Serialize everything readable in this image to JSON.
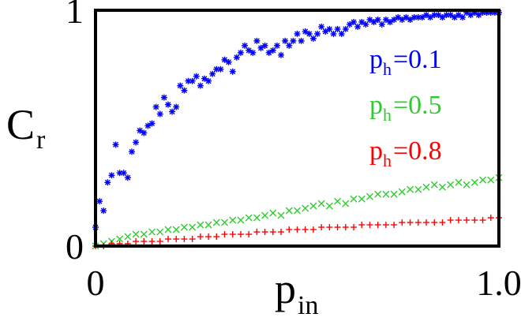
{
  "chart_data": {
    "type": "scatter",
    "xlabel": {
      "base": "p",
      "sub": "in"
    },
    "ylabel": {
      "base": "C",
      "sub": "r"
    },
    "xlim": [
      0,
      1.0
    ],
    "ylim": [
      0,
      1
    ],
    "x_ticks": [
      {
        "value": 0,
        "label": "0"
      },
      {
        "value": 1.0,
        "label": "1.0"
      }
    ],
    "y_ticks": [
      {
        "value": 0,
        "label": "0"
      },
      {
        "value": 1,
        "label": "1"
      }
    ],
    "legend_position": "right, inside plot",
    "grid": false,
    "series": [
      {
        "legend": {
          "base": "p",
          "sub": "h",
          "rest": "=0.1"
        },
        "color": "#0000ff",
        "marker": "asterisk",
        "points": [
          [
            0.0,
            0.08
          ],
          [
            0.01,
            0.19
          ],
          [
            0.02,
            0.15
          ],
          [
            0.03,
            0.27
          ],
          [
            0.04,
            0.3
          ],
          [
            0.05,
            0.43
          ],
          [
            0.06,
            0.31
          ],
          [
            0.07,
            0.31
          ],
          [
            0.08,
            0.29
          ],
          [
            0.09,
            0.4
          ],
          [
            0.1,
            0.44
          ],
          [
            0.11,
            0.49
          ],
          [
            0.12,
            0.48
          ],
          [
            0.13,
            0.51
          ],
          [
            0.14,
            0.52
          ],
          [
            0.15,
            0.59
          ],
          [
            0.16,
            0.56
          ],
          [
            0.17,
            0.63
          ],
          [
            0.18,
            0.6
          ],
          [
            0.19,
            0.57
          ],
          [
            0.2,
            0.59
          ],
          [
            0.21,
            0.68
          ],
          [
            0.22,
            0.66
          ],
          [
            0.23,
            0.7
          ],
          [
            0.24,
            0.7
          ],
          [
            0.25,
            0.72
          ],
          [
            0.26,
            0.68
          ],
          [
            0.27,
            0.71
          ],
          [
            0.28,
            0.7
          ],
          [
            0.29,
            0.73
          ],
          [
            0.3,
            0.75
          ],
          [
            0.31,
            0.75
          ],
          [
            0.32,
            0.79
          ],
          [
            0.33,
            0.78
          ],
          [
            0.34,
            0.74
          ],
          [
            0.35,
            0.8
          ],
          [
            0.36,
            0.82
          ],
          [
            0.37,
            0.85
          ],
          [
            0.38,
            0.83
          ],
          [
            0.39,
            0.82
          ],
          [
            0.4,
            0.87
          ],
          [
            0.41,
            0.84
          ],
          [
            0.42,
            0.85
          ],
          [
            0.43,
            0.82
          ],
          [
            0.44,
            0.83
          ],
          [
            0.45,
            0.85
          ],
          [
            0.46,
            0.81
          ],
          [
            0.47,
            0.87
          ],
          [
            0.48,
            0.85
          ],
          [
            0.49,
            0.87
          ],
          [
            0.5,
            0.9
          ],
          [
            0.51,
            0.87
          ],
          [
            0.52,
            0.91
          ],
          [
            0.53,
            0.9
          ],
          [
            0.54,
            0.88
          ],
          [
            0.55,
            0.9
          ],
          [
            0.56,
            0.93
          ],
          [
            0.57,
            0.91
          ],
          [
            0.58,
            0.92
          ],
          [
            0.59,
            0.9
          ],
          [
            0.6,
            0.92
          ],
          [
            0.61,
            0.9
          ],
          [
            0.62,
            0.92
          ],
          [
            0.63,
            0.94
          ],
          [
            0.64,
            0.95
          ],
          [
            0.65,
            0.93
          ],
          [
            0.66,
            0.95
          ],
          [
            0.67,
            0.94
          ],
          [
            0.68,
            0.96
          ],
          [
            0.69,
            0.95
          ],
          [
            0.7,
            0.96
          ],
          [
            0.71,
            0.94
          ],
          [
            0.72,
            0.96
          ],
          [
            0.73,
            0.95
          ],
          [
            0.74,
            0.96
          ],
          [
            0.75,
            0.97
          ],
          [
            0.76,
            0.96
          ],
          [
            0.77,
            0.97
          ],
          [
            0.78,
            0.96
          ],
          [
            0.79,
            0.97
          ],
          [
            0.8,
            0.97
          ],
          [
            0.81,
            0.97
          ],
          [
            0.82,
            0.98
          ],
          [
            0.83,
            0.97
          ],
          [
            0.84,
            0.98
          ],
          [
            0.85,
            0.98
          ],
          [
            0.86,
            0.97
          ],
          [
            0.87,
            0.98
          ],
          [
            0.88,
            0.98
          ],
          [
            0.89,
            0.97
          ],
          [
            0.9,
            0.98
          ],
          [
            0.91,
            0.97
          ],
          [
            0.92,
            0.99
          ],
          [
            0.93,
            0.98
          ],
          [
            0.94,
            0.99
          ],
          [
            0.95,
            0.98
          ],
          [
            0.96,
            0.99
          ],
          [
            0.97,
            0.99
          ],
          [
            0.98,
            0.99
          ],
          [
            0.99,
            0.99
          ],
          [
            1.0,
            0.99
          ]
        ]
      },
      {
        "legend": {
          "base": "p",
          "sub": "h",
          "rest": "=0.5"
        },
        "color": "#2ecc2e",
        "marker": "x",
        "points": [
          [
            0.0,
            0.0
          ],
          [
            0.02,
            0.01
          ],
          [
            0.04,
            0.02
          ],
          [
            0.06,
            0.03
          ],
          [
            0.08,
            0.04
          ],
          [
            0.1,
            0.05
          ],
          [
            0.12,
            0.05
          ],
          [
            0.14,
            0.06
          ],
          [
            0.16,
            0.06
          ],
          [
            0.18,
            0.07
          ],
          [
            0.2,
            0.07
          ],
          [
            0.22,
            0.08
          ],
          [
            0.24,
            0.08
          ],
          [
            0.26,
            0.09
          ],
          [
            0.28,
            0.09
          ],
          [
            0.3,
            0.1
          ],
          [
            0.32,
            0.1
          ],
          [
            0.34,
            0.11
          ],
          [
            0.36,
            0.11
          ],
          [
            0.38,
            0.12
          ],
          [
            0.4,
            0.12
          ],
          [
            0.42,
            0.13
          ],
          [
            0.44,
            0.14
          ],
          [
            0.46,
            0.13
          ],
          [
            0.48,
            0.15
          ],
          [
            0.5,
            0.15
          ],
          [
            0.52,
            0.16
          ],
          [
            0.54,
            0.17
          ],
          [
            0.56,
            0.18
          ],
          [
            0.58,
            0.17
          ],
          [
            0.6,
            0.19
          ],
          [
            0.62,
            0.18
          ],
          [
            0.64,
            0.2
          ],
          [
            0.66,
            0.2
          ],
          [
            0.68,
            0.21
          ],
          [
            0.7,
            0.22
          ],
          [
            0.72,
            0.22
          ],
          [
            0.74,
            0.22
          ],
          [
            0.76,
            0.23
          ],
          [
            0.78,
            0.24
          ],
          [
            0.8,
            0.24
          ],
          [
            0.82,
            0.25
          ],
          [
            0.84,
            0.26
          ],
          [
            0.86,
            0.25
          ],
          [
            0.88,
            0.26
          ],
          [
            0.9,
            0.27
          ],
          [
            0.92,
            0.26
          ],
          [
            0.94,
            0.27
          ],
          [
            0.96,
            0.28
          ],
          [
            0.98,
            0.28
          ],
          [
            1.0,
            0.29
          ]
        ]
      },
      {
        "legend": {
          "base": "p",
          "sub": "h",
          "rest": "=0.8"
        },
        "color": "#ff0000",
        "marker": "plus",
        "points": [
          [
            0.0,
            0.0
          ],
          [
            0.02,
            0.0
          ],
          [
            0.04,
            0.01
          ],
          [
            0.06,
            0.01
          ],
          [
            0.08,
            0.01
          ],
          [
            0.1,
            0.02
          ],
          [
            0.12,
            0.02
          ],
          [
            0.14,
            0.02
          ],
          [
            0.16,
            0.02
          ],
          [
            0.18,
            0.03
          ],
          [
            0.2,
            0.03
          ],
          [
            0.22,
            0.03
          ],
          [
            0.24,
            0.03
          ],
          [
            0.26,
            0.04
          ],
          [
            0.28,
            0.04
          ],
          [
            0.3,
            0.04
          ],
          [
            0.32,
            0.05
          ],
          [
            0.34,
            0.05
          ],
          [
            0.36,
            0.05
          ],
          [
            0.38,
            0.05
          ],
          [
            0.4,
            0.06
          ],
          [
            0.42,
            0.06
          ],
          [
            0.44,
            0.06
          ],
          [
            0.46,
            0.06
          ],
          [
            0.48,
            0.07
          ],
          [
            0.5,
            0.07
          ],
          [
            0.52,
            0.07
          ],
          [
            0.54,
            0.07
          ],
          [
            0.56,
            0.08
          ],
          [
            0.58,
            0.08
          ],
          [
            0.6,
            0.08
          ],
          [
            0.62,
            0.08
          ],
          [
            0.64,
            0.08
          ],
          [
            0.66,
            0.09
          ],
          [
            0.68,
            0.09
          ],
          [
            0.7,
            0.09
          ],
          [
            0.72,
            0.09
          ],
          [
            0.74,
            0.09
          ],
          [
            0.76,
            0.1
          ],
          [
            0.78,
            0.1
          ],
          [
            0.8,
            0.1
          ],
          [
            0.82,
            0.1
          ],
          [
            0.84,
            0.1
          ],
          [
            0.86,
            0.1
          ],
          [
            0.88,
            0.11
          ],
          [
            0.9,
            0.11
          ],
          [
            0.92,
            0.11
          ],
          [
            0.94,
            0.11
          ],
          [
            0.96,
            0.11
          ],
          [
            0.98,
            0.12
          ],
          [
            1.0,
            0.12
          ]
        ]
      }
    ]
  }
}
